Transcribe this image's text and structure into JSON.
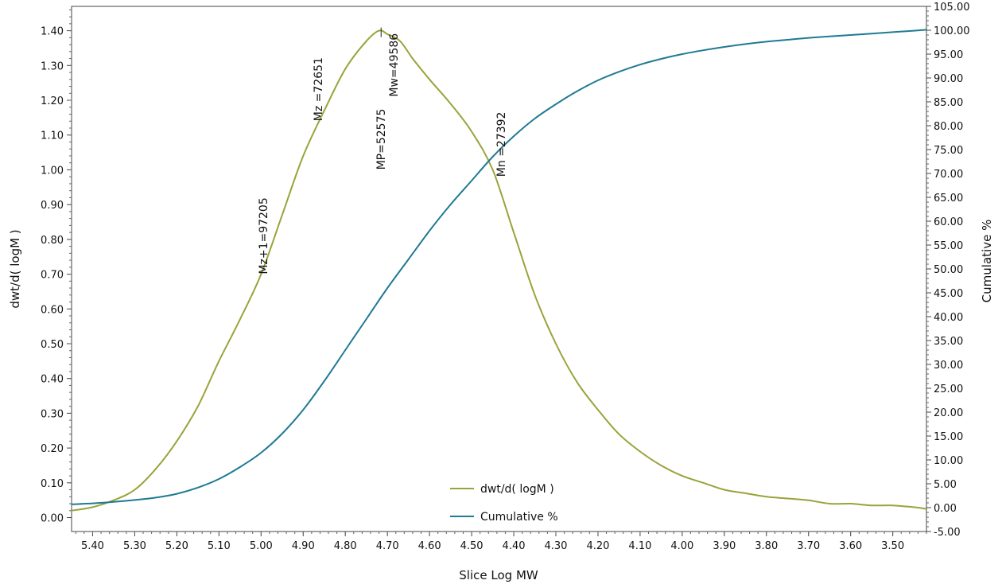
{
  "chart_data": {
    "type": "line",
    "xlabel": "Slice Log MW",
    "ylabel_left": "dwt/d( logM )",
    "ylabel_right": "Cumulative %",
    "x_reversed": true,
    "xlim": [
      5.45,
      3.42
    ],
    "ylim_left": [
      -0.04,
      1.47
    ],
    "ylim_right": [
      -5.0,
      105.0
    ],
    "grid": false,
    "legend_position": "bottom-center",
    "x_ticks": [
      "5.40",
      "5.30",
      "5.20",
      "5.10",
      "5.00",
      "4.90",
      "4.80",
      "4.70",
      "4.60",
      "4.50",
      "4.40",
      "4.30",
      "4.20",
      "4.10",
      "4.00",
      "3.90",
      "3.80",
      "3.70",
      "3.60",
      "3.50"
    ],
    "y_left_ticks": [
      "0.00",
      "0.10",
      "0.20",
      "0.30",
      "0.40",
      "0.50",
      "0.60",
      "0.70",
      "0.80",
      "0.90",
      "1.00",
      "1.10",
      "1.20",
      "1.30",
      "1.40"
    ],
    "y_right_ticks": [
      "-5.00",
      "0.00",
      "5.00",
      "10.00",
      "15.00",
      "20.00",
      "25.00",
      "30.00",
      "35.00",
      "40.00",
      "45.00",
      "50.00",
      "55.00",
      "60.00",
      "65.00",
      "70.00",
      "75.00",
      "80.00",
      "85.00",
      "90.00",
      "95.00",
      "100.00",
      "105.00"
    ],
    "series": [
      {
        "name": "dwt/d( logM )",
        "axis": "left",
        "color": "#9aa33a",
        "x": [
          5.45,
          5.4,
          5.35,
          5.3,
          5.25,
          5.2,
          5.15,
          5.1,
          5.05,
          5.0,
          4.95,
          4.9,
          4.85,
          4.8,
          4.75,
          4.72,
          4.7,
          4.67,
          4.64,
          4.6,
          4.55,
          4.5,
          4.45,
          4.4,
          4.35,
          4.3,
          4.25,
          4.2,
          4.15,
          4.1,
          4.05,
          4.0,
          3.95,
          3.9,
          3.85,
          3.8,
          3.75,
          3.7,
          3.65,
          3.6,
          3.55,
          3.5,
          3.45,
          3.42
        ],
        "y": [
          0.02,
          0.03,
          0.05,
          0.08,
          0.14,
          0.22,
          0.32,
          0.45,
          0.57,
          0.7,
          0.87,
          1.04,
          1.17,
          1.29,
          1.37,
          1.4,
          1.39,
          1.37,
          1.32,
          1.26,
          1.19,
          1.11,
          1.0,
          0.82,
          0.64,
          0.5,
          0.39,
          0.31,
          0.24,
          0.19,
          0.15,
          0.12,
          0.1,
          0.08,
          0.07,
          0.06,
          0.055,
          0.05,
          0.04,
          0.04,
          0.035,
          0.035,
          0.03,
          0.025
        ]
      },
      {
        "name": "Cumulative %",
        "axis": "right",
        "color": "#1f7a93",
        "x": [
          5.45,
          5.4,
          5.35,
          5.3,
          5.25,
          5.2,
          5.15,
          5.1,
          5.05,
          5.0,
          4.95,
          4.9,
          4.85,
          4.8,
          4.75,
          4.7,
          4.65,
          4.6,
          4.55,
          4.5,
          4.45,
          4.4,
          4.35,
          4.3,
          4.25,
          4.2,
          4.15,
          4.1,
          4.05,
          4.0,
          3.95,
          3.9,
          3.85,
          3.8,
          3.75,
          3.7,
          3.65,
          3.6,
          3.55,
          3.5,
          3.45,
          3.42
        ],
        "y": [
          0.7,
          0.9,
          1.2,
          1.6,
          2.1,
          2.9,
          4.2,
          6.0,
          8.5,
          11.5,
          15.5,
          20.5,
          26.5,
          33.0,
          39.5,
          46.0,
          52.0,
          58.0,
          63.5,
          68.5,
          73.5,
          77.8,
          81.5,
          84.5,
          87.2,
          89.5,
          91.3,
          92.8,
          94.0,
          95.0,
          95.8,
          96.5,
          97.1,
          97.6,
          98.0,
          98.4,
          98.7,
          99.0,
          99.3,
          99.6,
          99.9,
          100.1
        ]
      }
    ],
    "annotations": [
      {
        "text": "Mz+1=97205",
        "x": 4.995,
        "y": 0.7
      },
      {
        "text": "Mz =72651",
        "x": 4.865,
        "y": 1.14
      },
      {
        "text": "MP=52575",
        "x": 4.715,
        "y": 1.0
      },
      {
        "text": "Mw=49586",
        "x": 4.685,
        "y": 1.21
      },
      {
        "text": "Mn =27392",
        "x": 4.43,
        "y": 0.98
      }
    ],
    "legend": [
      {
        "label": "dwt/d( logM )",
        "color": "#9aa33a"
      },
      {
        "label": "Cumulative %",
        "color": "#1f7a93"
      }
    ]
  }
}
